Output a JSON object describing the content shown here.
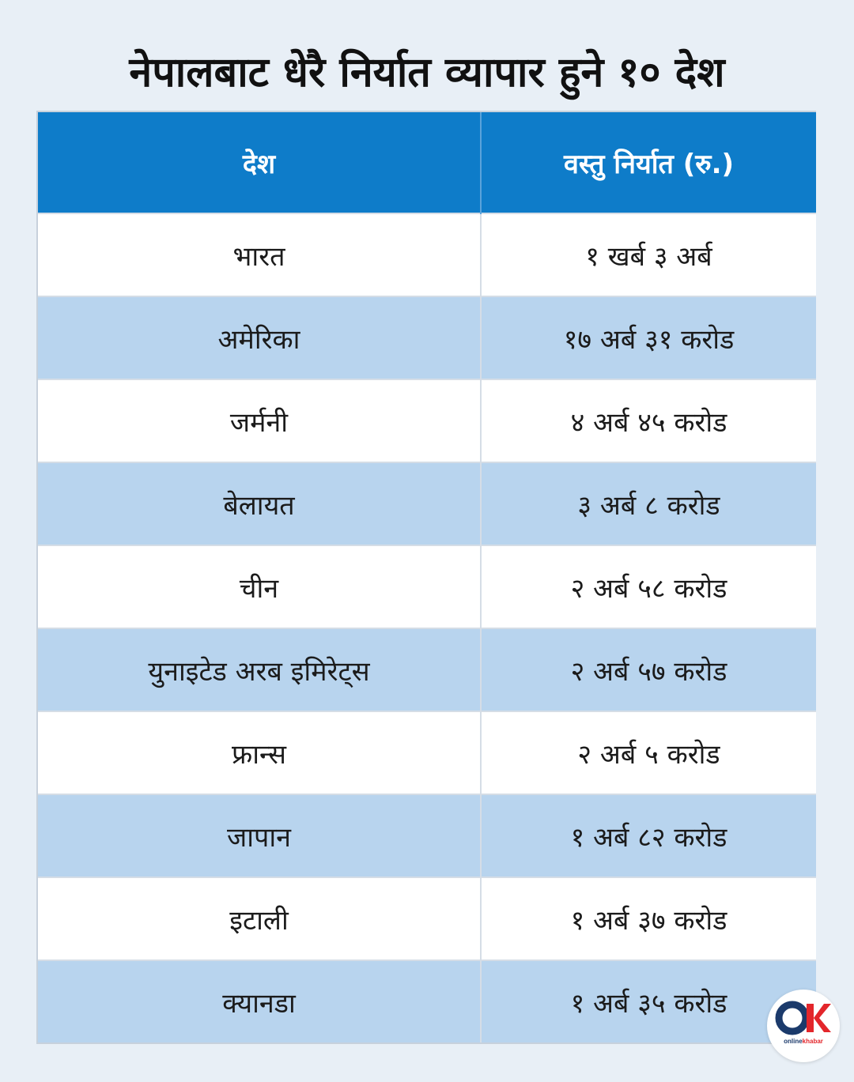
{
  "title": "नेपालबाट धेरै निर्यात व्यापार हुने १० देश",
  "table": {
    "headers": [
      "देश",
      "वस्तु निर्यात (रु.)"
    ],
    "rows": [
      [
        "भारत",
        "१ खर्ब ३ अर्ब"
      ],
      [
        "अमेरिका",
        "१७ अर्ब ३१ करोड"
      ],
      [
        "जर्मनी",
        "४ अर्ब ४५ करोड"
      ],
      [
        "बेलायत",
        "३ अर्ब ८ करोड"
      ],
      [
        "चीन",
        "२ अर्ब ५८ करोड"
      ],
      [
        "युनाइटेड अरब इमिरेट्स",
        "२ अर्ब ५७ करोड"
      ],
      [
        "फ्रान्स",
        "२ अर्ब ५ करोड"
      ],
      [
        "जापान",
        "१ अर्ब ८२ करोड"
      ],
      [
        "इटाली",
        "१ अर्ब ३७ करोड"
      ],
      [
        "क्यानडा",
        "१ अर्ब ३५ करोड"
      ]
    ]
  },
  "logo": {
    "icon": "onlinekhabar-logo-icon",
    "text_part1": "online",
    "text_part2": "khabar"
  },
  "colors": {
    "header_bg": "#0e7cc9",
    "stripe": "#b8d4ee",
    "background": "#e8eff6",
    "logo_red": "#e3262b",
    "logo_navy": "#1b3a6b"
  }
}
